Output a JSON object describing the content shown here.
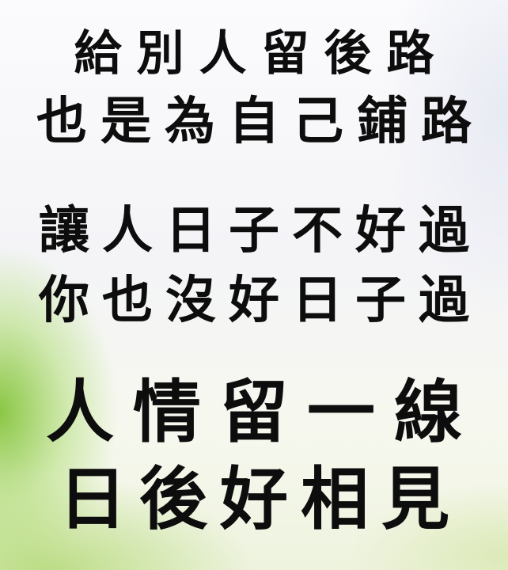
{
  "lines": [
    [
      "給",
      "別",
      "人",
      "留",
      "後",
      "路"
    ],
    [
      "也",
      "是",
      "為",
      "自",
      "己",
      "鋪",
      "路"
    ],
    [
      "讓",
      "人",
      "日",
      "子",
      "不",
      "好",
      "過"
    ],
    [
      "你",
      "也",
      "沒",
      "好",
      "日",
      "子",
      "過"
    ],
    [
      "人",
      "情",
      "留",
      "一",
      "線"
    ],
    [
      "日",
      "後",
      "好",
      "相",
      "見"
    ]
  ]
}
